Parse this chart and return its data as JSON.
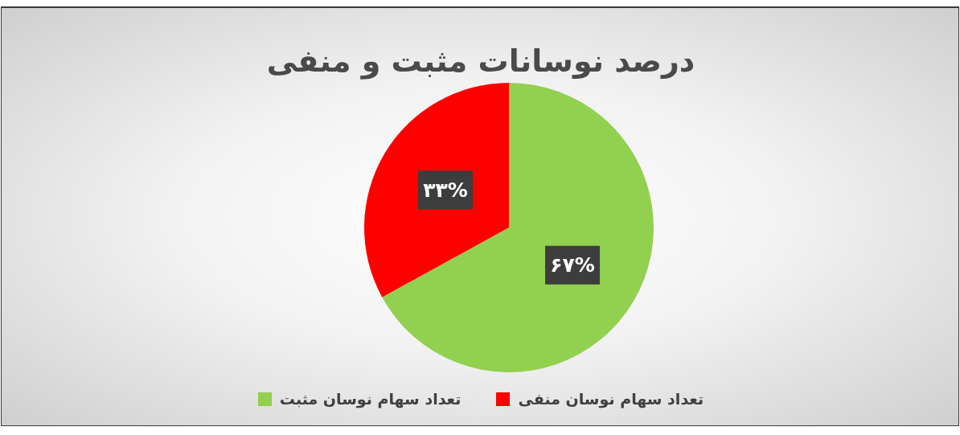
{
  "chart_data": {
    "type": "pie",
    "title": "درصد نوسانات مثبت و منفی",
    "categories": [
      "تعداد سهام نوسان مثبت",
      "تعداد سهام نوسان منفی"
    ],
    "values": [
      67,
      33
    ],
    "colors": [
      "#92d050",
      "#ff0000"
    ],
    "value_labels": [
      "۶۷%",
      "۳۳%"
    ],
    "legend": "bottom"
  }
}
